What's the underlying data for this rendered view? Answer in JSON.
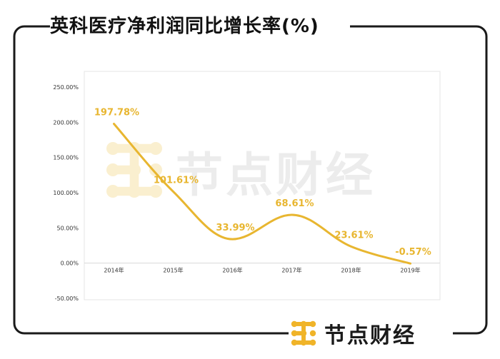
{
  "title": "英科医疗净利润同比增长率(%)",
  "brand": {
    "name": "节点财经",
    "icon": "brand-grid-icon"
  },
  "watermark": "节点财经",
  "colors": {
    "line": "#e8b630",
    "frame": "#1a1a1a",
    "brand_icon": "#f0b429",
    "watermark": "#ececec"
  },
  "chart_data": {
    "type": "line",
    "categories": [
      "2014年",
      "2015年",
      "2016年",
      "2017年",
      "2018年",
      "2019年"
    ],
    "series": [
      {
        "values": [
          197.78,
          101.61,
          33.99,
          68.61,
          23.61,
          -0.57
        ]
      }
    ],
    "data_labels": [
      "197.78%",
      "101.61%",
      "33.99%",
      "68.61%",
      "23.61%",
      "-0.57%"
    ],
    "y_ticks": [
      "250.00%",
      "200.00%",
      "150.00%",
      "100.00%",
      "50.00%",
      "0.00%",
      "-50.00%"
    ],
    "y_tick_values": [
      250,
      200,
      150,
      100,
      50,
      0,
      -50
    ],
    "ylim": [
      -50,
      250
    ],
    "smooth": true,
    "grid": false
  }
}
